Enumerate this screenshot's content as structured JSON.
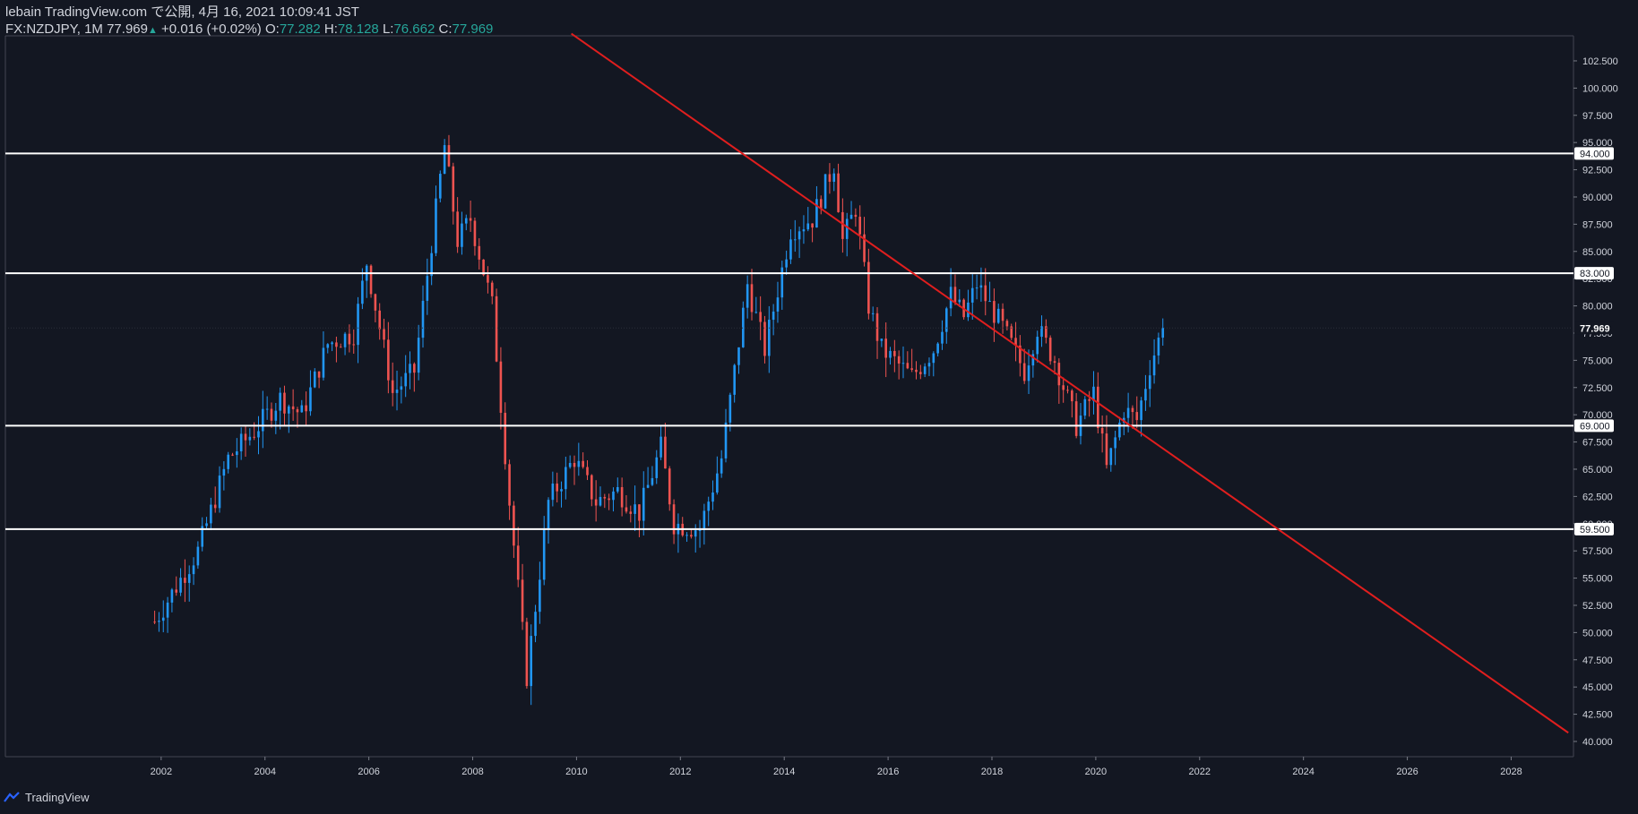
{
  "header": {
    "line1": "lebain TradingView.com で公開, 4月 16, 2021 10:09:41 JST",
    "symbol": "FX:NZDJPY, 1M",
    "last": "77.969",
    "change": "+0.016 (+0.02%)",
    "o_label": "O:",
    "o_value": "77.282",
    "h_label": "H:",
    "h_value": "78.128",
    "l_label": "L:",
    "l_value": "76.662",
    "c_label": "C:",
    "c_value": "77.969"
  },
  "footer": {
    "brand": "TradingView"
  },
  "colors": {
    "background": "#131722",
    "up": "#2196f3",
    "down": "#ef5350",
    "trendline": "#e01e1e",
    "level": "#ffffff",
    "axis_text": "#d1d4dc",
    "ohlc_value": "#26a69a"
  },
  "chart_data": {
    "type": "candlestick",
    "symbol": "FX:NZDJPY",
    "interval": "1M",
    "x_axis": {
      "type": "time",
      "ticks": [
        "2002",
        "2004",
        "2006",
        "2008",
        "2010",
        "2012",
        "2014",
        "2016",
        "2018",
        "2020",
        "2022",
        "2024",
        "2026",
        "2028"
      ],
      "range": [
        1999.0,
        2029.2
      ]
    },
    "y_axis": {
      "position": "right",
      "range": [
        38.6,
        104.8
      ],
      "ticks": [
        "40.000",
        "42.500",
        "45.000",
        "47.500",
        "50.000",
        "52.500",
        "55.000",
        "57.500",
        "60.000",
        "62.500",
        "65.000",
        "67.500",
        "70.000",
        "72.500",
        "75.000",
        "77.500",
        "80.000",
        "82.500",
        "85.000",
        "87.500",
        "90.000",
        "92.500",
        "95.000",
        "97.500",
        "100.000",
        "102.500"
      ]
    },
    "horizontal_levels": [
      {
        "value": 94.0,
        "label": "94.000"
      },
      {
        "value": 83.0,
        "label": "83.000"
      },
      {
        "value": 69.0,
        "label": "69.000"
      },
      {
        "value": 59.5,
        "label": "59.500"
      }
    ],
    "last_price": {
      "value": 77.969,
      "label": "77.969"
    },
    "trendline": {
      "p1": {
        "x": 2009.9,
        "y": 105.0
      },
      "p2": {
        "x": 2029.1,
        "y": 40.8
      }
    },
    "anchors": [
      [
        "2001-11",
        51.0
      ],
      [
        "2002-09",
        57.5
      ],
      [
        "2003-04",
        66.0
      ],
      [
        "2003-10",
        68.5
      ],
      [
        "2004-04",
        71.5
      ],
      [
        "2004-09",
        70.0
      ],
      [
        "2005-03",
        76.5
      ],
      [
        "2005-09",
        77.5
      ],
      [
        "2005-12",
        84.0
      ],
      [
        "2006-06",
        72.0
      ],
      [
        "2006-11",
        74.0
      ],
      [
        "2007-06",
        94.7
      ],
      [
        "2007-09",
        86.0
      ],
      [
        "2007-12",
        88.0
      ],
      [
        "2008-05",
        80.0
      ],
      [
        "2008-09",
        62.0
      ],
      [
        "2009-01",
        46.0
      ],
      [
        "2009-06",
        62.0
      ],
      [
        "2009-12",
        66.0
      ],
      [
        "2010-05",
        62.0
      ],
      [
        "2010-10",
        63.0
      ],
      [
        "2011-03",
        61.0
      ],
      [
        "2011-08",
        67.0
      ],
      [
        "2011-11",
        60.0
      ],
      [
        "2012-05",
        59.5
      ],
      [
        "2012-10",
        66.0
      ],
      [
        "2013-04",
        82.0
      ],
      [
        "2013-08",
        76.0
      ],
      [
        "2014-02",
        87.0
      ],
      [
        "2014-07",
        88.0
      ],
      [
        "2014-12",
        93.0
      ],
      [
        "2015-02",
        86.0
      ],
      [
        "2015-05",
        89.0
      ],
      [
        "2015-08",
        80.0
      ],
      [
        "2015-11",
        76.0
      ],
      [
        "2016-06",
        73.5
      ],
      [
        "2016-11",
        76.0
      ],
      [
        "2017-03",
        81.0
      ],
      [
        "2017-06",
        79.0
      ],
      [
        "2017-09",
        82.0
      ],
      [
        "2018-03",
        78.0
      ],
      [
        "2018-08",
        74.0
      ],
      [
        "2018-11",
        78.0
      ],
      [
        "2019-03",
        75.0
      ],
      [
        "2019-08",
        69.0
      ],
      [
        "2019-12",
        72.0
      ],
      [
        "2020-03",
        65.0
      ],
      [
        "2020-07",
        70.5
      ],
      [
        "2020-10",
        69.5
      ],
      [
        "2021-01",
        74.5
      ],
      [
        "2021-04",
        77.97
      ]
    ]
  }
}
